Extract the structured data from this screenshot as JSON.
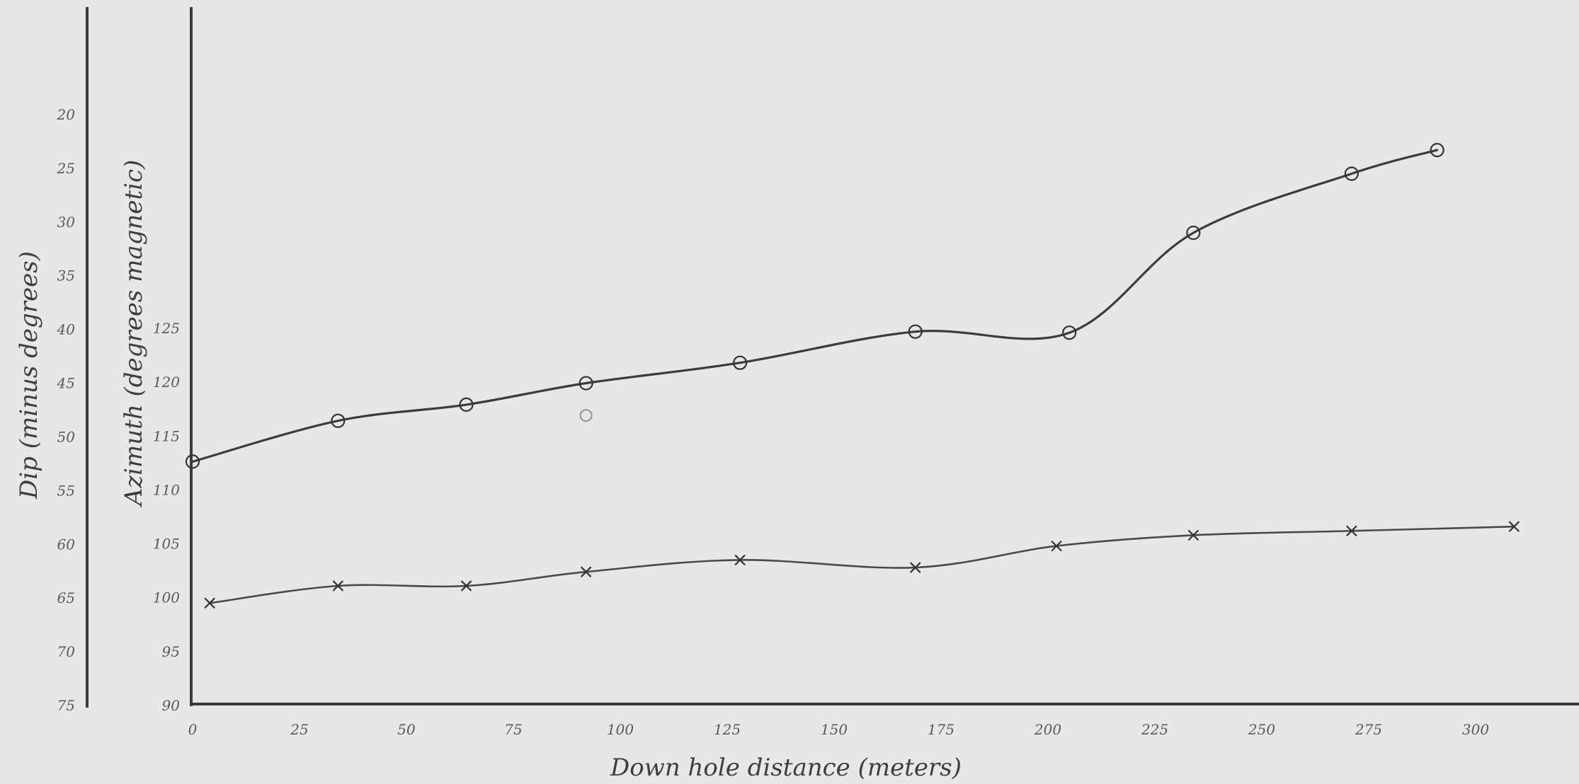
{
  "chart_data": {
    "type": "line",
    "xlabel": "Down hole distance (meters)",
    "ylabel_dip": "Dip (minus degrees)",
    "ylabel_azimuth": "Azimuth (degrees magnetic)",
    "x_ticks": [
      "0",
      "25",
      "50",
      "75",
      "100",
      "125",
      "150",
      "175",
      "200",
      "225",
      "250",
      "275",
      "300"
    ],
    "xlim": [
      0,
      300
    ],
    "dip_ticks": [
      "20",
      "25",
      "30",
      "35",
      "40",
      "45",
      "50",
      "55",
      "60",
      "65",
      "70",
      "75"
    ],
    "dip_ylim": [
      75,
      20
    ],
    "azimuth_ticks": [
      "90",
      "95",
      "100",
      "105",
      "110",
      "115",
      "120",
      "125"
    ],
    "azimuth_ylim": [
      90,
      139
    ],
    "grid": false,
    "series": [
      {
        "marker": "circle",
        "axis": "dip",
        "points": [
          {
            "x": 0,
            "y": 52.3
          },
          {
            "x": 34,
            "y": 48.5
          },
          {
            "x": 64,
            "y": 47.0
          },
          {
            "x": 92,
            "y": 45.0
          },
          {
            "x": 128,
            "y": 43.1
          },
          {
            "x": 169,
            "y": 40.2
          },
          {
            "x": 205,
            "y": 40.3
          },
          {
            "x": 234,
            "y": 31.0
          },
          {
            "x": 271,
            "y": 25.5
          },
          {
            "x": 291,
            "y": 23.3
          }
        ]
      },
      {
        "marker": "x",
        "axis": "azimuth",
        "points": [
          {
            "x": 4,
            "y": 99.5
          },
          {
            "x": 34,
            "y": 101.1
          },
          {
            "x": 64,
            "y": 101.1
          },
          {
            "x": 92,
            "y": 102.4
          },
          {
            "x": 128,
            "y": 103.5
          },
          {
            "x": 169,
            "y": 102.8
          },
          {
            "x": 202,
            "y": 104.8
          },
          {
            "x": 234,
            "y": 105.8
          },
          {
            "x": 271,
            "y": 106.2
          },
          {
            "x": 309,
            "y": 106.6
          }
        ]
      }
    ],
    "stray_marks": [
      {
        "axis": "dip",
        "x": 92,
        "y": 48.0,
        "marker": "circle"
      }
    ]
  }
}
